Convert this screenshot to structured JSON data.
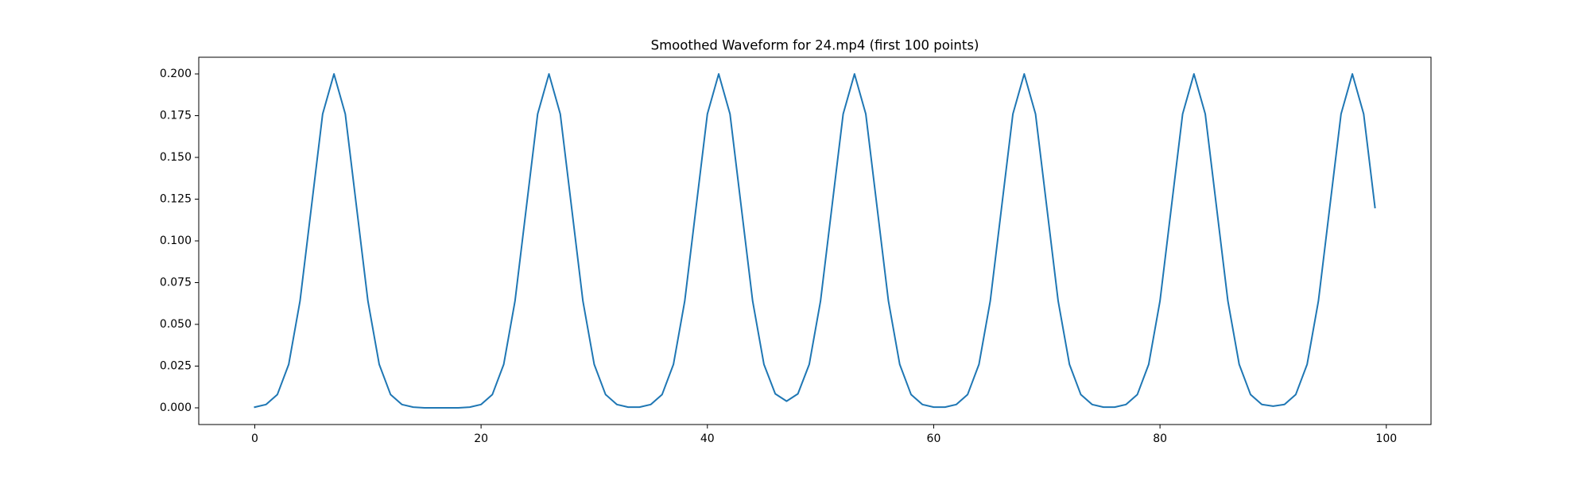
{
  "chart_data": {
    "type": "line",
    "title": "Smoothed Waveform for 24.mp4 (first 100 points)",
    "x": [
      0,
      1,
      2,
      3,
      4,
      5,
      6,
      7,
      8,
      9,
      10,
      11,
      12,
      13,
      14,
      15,
      16,
      17,
      18,
      19,
      20,
      21,
      22,
      23,
      24,
      25,
      26,
      27,
      28,
      29,
      30,
      31,
      32,
      33,
      34,
      35,
      36,
      37,
      38,
      39,
      40,
      41,
      42,
      43,
      44,
      45,
      46,
      47,
      48,
      49,
      50,
      51,
      52,
      53,
      54,
      55,
      56,
      57,
      58,
      59,
      60,
      61,
      62,
      63,
      64,
      65,
      66,
      67,
      68,
      69,
      70,
      71,
      72,
      73,
      74,
      75,
      76,
      77,
      78,
      79,
      80,
      81,
      82,
      83,
      84,
      85,
      86,
      87,
      88,
      89,
      90,
      91,
      92,
      93,
      94,
      95,
      96,
      97,
      98,
      99
    ],
    "series": [
      {
        "name": "waveform",
        "color": "#1f77b4",
        "values": [
          0.0004,
          0.002,
          0.008,
          0.026,
          0.064,
          0.12,
          0.176,
          0.2,
          0.176,
          0.12,
          0.064,
          0.026,
          0.008,
          0.002,
          0.0004,
          0,
          0,
          0,
          0,
          0.0004,
          0.002,
          0.008,
          0.026,
          0.064,
          0.12,
          0.176,
          0.2,
          0.176,
          0.12,
          0.064,
          0.026,
          0.008,
          0.002,
          0.0004,
          0.0004,
          0.002,
          0.008,
          0.026,
          0.064,
          0.12,
          0.176,
          0.2,
          0.176,
          0.12,
          0.064,
          0.026,
          0.0084,
          0.004,
          0.0084,
          0.026,
          0.064,
          0.12,
          0.176,
          0.2,
          0.176,
          0.12,
          0.064,
          0.026,
          0.008,
          0.002,
          0.0004,
          0.0004,
          0.002,
          0.008,
          0.026,
          0.064,
          0.12,
          0.176,
          0.2,
          0.176,
          0.12,
          0.064,
          0.026,
          0.008,
          0.002,
          0.0004,
          0.0004,
          0.002,
          0.008,
          0.026,
          0.064,
          0.12,
          0.176,
          0.2,
          0.176,
          0.12,
          0.064,
          0.026,
          0.008,
          0.002,
          0.001,
          0.002,
          0.008,
          0.026,
          0.064,
          0.12,
          0.176,
          0.2,
          0.176,
          0.12
        ]
      }
    ],
    "xlim": [
      -4.95,
      103.95
    ],
    "xticks": [
      0,
      20,
      40,
      60,
      80,
      100
    ],
    "ylim": [
      -0.01,
      0.21
    ],
    "yticks": [
      {
        "value": 0,
        "label": "0.000"
      },
      {
        "value": 0.025,
        "label": "0.025"
      },
      {
        "value": 0.05,
        "label": "0.050"
      },
      {
        "value": 0.075,
        "label": "0.075"
      },
      {
        "value": 0.1,
        "label": "0.100"
      },
      {
        "value": 0.125,
        "label": "0.125"
      },
      {
        "value": 0.15,
        "label": "0.150"
      },
      {
        "value": 0.175,
        "label": "0.175"
      },
      {
        "value": 0.2,
        "label": "0.200"
      }
    ],
    "grid": false
  }
}
